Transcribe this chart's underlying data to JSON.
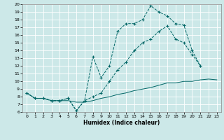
{
  "xlabel": "Humidex (Indice chaleur)",
  "bg_color": "#cce8e8",
  "grid_color": "#b8d8d8",
  "line_color": "#006666",
  "xlim": [
    -0.5,
    23.5
  ],
  "ylim": [
    6,
    20
  ],
  "xticks": [
    0,
    1,
    2,
    3,
    4,
    5,
    6,
    7,
    8,
    9,
    10,
    11,
    12,
    13,
    14,
    15,
    16,
    17,
    18,
    19,
    20,
    21,
    22,
    23
  ],
  "yticks": [
    6,
    7,
    8,
    9,
    10,
    11,
    12,
    13,
    14,
    15,
    16,
    17,
    18,
    19,
    20
  ],
  "line1_x": [
    0,
    1,
    2,
    3,
    4,
    5,
    6,
    7,
    8,
    9,
    10,
    11,
    12,
    13,
    14,
    15,
    16,
    17,
    18,
    19,
    20,
    21
  ],
  "line1_y": [
    8.5,
    7.8,
    7.8,
    7.5,
    7.5,
    7.8,
    6.2,
    7.5,
    13.2,
    10.5,
    12.0,
    16.5,
    17.5,
    17.5,
    18.0,
    19.8,
    19.0,
    18.5,
    17.5,
    17.3,
    14.0,
    12.0
  ],
  "line2_x": [
    0,
    1,
    2,
    3,
    4,
    5,
    6,
    7,
    8,
    9,
    10,
    11,
    12,
    13,
    14,
    15,
    16,
    17,
    18,
    19,
    20,
    21
  ],
  "line2_y": [
    8.5,
    7.8,
    7.8,
    7.5,
    7.5,
    7.8,
    6.2,
    7.5,
    8.0,
    8.5,
    10.0,
    11.5,
    12.5,
    14.0,
    15.0,
    15.5,
    16.5,
    17.2,
    15.5,
    15.0,
    13.5,
    12.0
  ],
  "line3_x": [
    0,
    1,
    2,
    3,
    4,
    5,
    6,
    7,
    8,
    9,
    10,
    11,
    12,
    13,
    14,
    15,
    16,
    17,
    18,
    19,
    20,
    21,
    22,
    23
  ],
  "line3_y": [
    8.5,
    7.8,
    7.8,
    7.5,
    7.5,
    7.5,
    7.3,
    7.3,
    7.5,
    7.8,
    8.0,
    8.3,
    8.5,
    8.8,
    9.0,
    9.2,
    9.5,
    9.8,
    9.8,
    10.0,
    10.0,
    10.2,
    10.3,
    10.2
  ]
}
